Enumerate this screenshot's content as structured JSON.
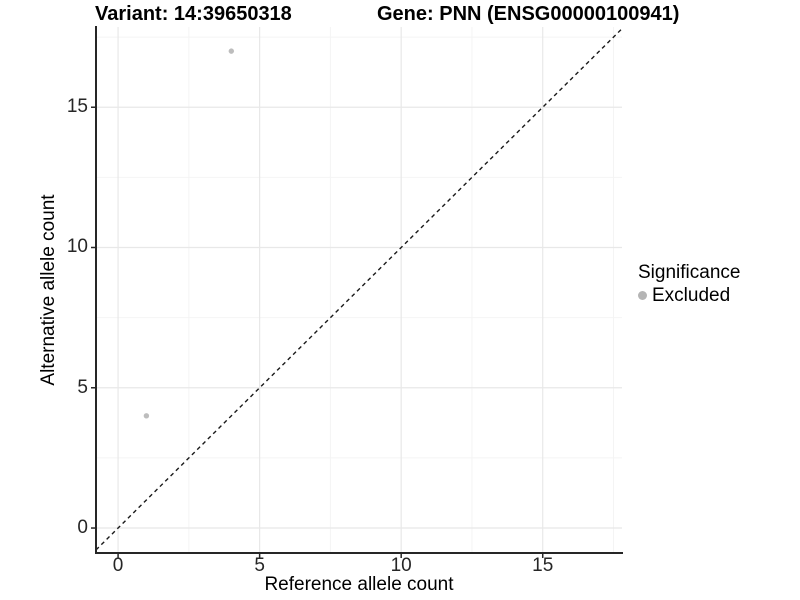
{
  "chart_data": {
    "type": "scatter",
    "titles": {
      "left": "Variant: 14:39650318",
      "right": "Gene: PNN (ENSG00000100941)"
    },
    "xlabel": "Reference allele count",
    "ylabel": "Alternative allele count",
    "xlim": [
      -0.78,
      17.8
    ],
    "ylim": [
      -0.89,
      17.86
    ],
    "xticks": [
      0,
      5,
      10,
      15
    ],
    "yticks": [
      0,
      5,
      10,
      15
    ],
    "xminor": [
      2.5,
      7.5,
      12.5,
      17.5
    ],
    "yminor": [
      2.5,
      7.5,
      12.5,
      17.5
    ],
    "grid": "major+minor",
    "series": [
      {
        "name": "Excluded",
        "color": "#bdbdbd",
        "points": [
          [
            1,
            4
          ],
          [
            4,
            17
          ]
        ]
      }
    ],
    "identity_line": {
      "slope": 1,
      "intercept": 0,
      "linetype": "dashed",
      "color": "#1a1a1a"
    },
    "legend": {
      "title": "Significance",
      "position": "right",
      "items": [
        {
          "label": "Excluded",
          "color": "#b5b5b5"
        }
      ]
    }
  },
  "colors": {
    "background": "#ffffff",
    "grid_major": "#e8e8e8",
    "grid_minor": "#f4f4f4",
    "axis_line": "#262626",
    "tick_mark": "#262626",
    "tick_text": "#262626",
    "point": "#bdbdbd"
  }
}
